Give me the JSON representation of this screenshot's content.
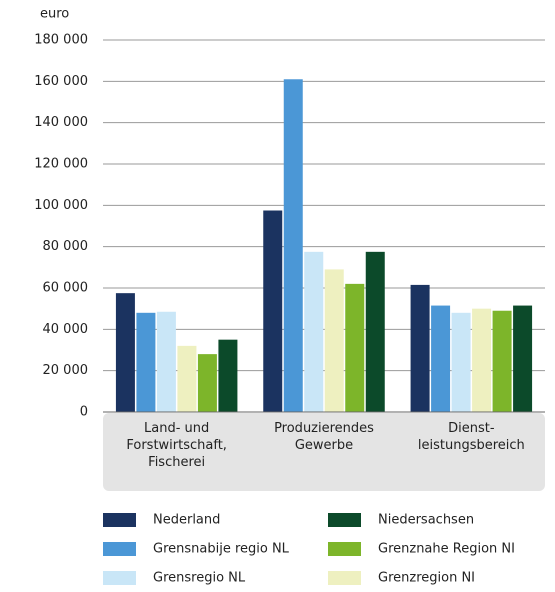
{
  "chart_data": {
    "type": "bar",
    "y_unit_label": "euro",
    "categories": [
      "Land- und\nForstwirtschaft,\nFischerei",
      "Produzierendes\nGewerbe",
      "Dienst-\nleistungsbereich"
    ],
    "series": [
      {
        "name": "Nederland",
        "color": "#1b3360",
        "values": [
          57500,
          97500,
          61500
        ]
      },
      {
        "name": "Grensnabije regio NL",
        "color": "#4b97d6",
        "values": [
          48000,
          161000,
          51500
        ]
      },
      {
        "name": "Grensregio NL",
        "color": "#c9e6f7",
        "values": [
          48500,
          77500,
          48000
        ]
      },
      {
        "name": "Grenzregion NI",
        "color": "#eef0c0",
        "values": [
          32000,
          69000,
          50000
        ]
      },
      {
        "name": "Grenznahe Region NI",
        "color": "#7db52a",
        "values": [
          28000,
          62000,
          49000
        ]
      },
      {
        "name": "Niedersachsen",
        "color": "#0c4a2a",
        "values": [
          35000,
          77500,
          51500
        ]
      }
    ],
    "ylim": [
      0,
      180000
    ],
    "yticks": [
      0,
      {
        "value": 20000,
        "label": "20 000"
      },
      {
        "value": 40000,
        "label": "40 000"
      },
      {
        "value": 60000,
        "label": "60 000"
      },
      {
        "value": 80000,
        "label": "80 000"
      },
      {
        "value": 100000,
        "label": "100 000"
      },
      {
        "value": 120000,
        "label": "120 000"
      },
      {
        "value": 140000,
        "label": "140 000"
      },
      {
        "value": 160000,
        "label": "160 000"
      },
      {
        "value": 180000,
        "label": "180 000"
      }
    ],
    "grid": true,
    "legend_order": [
      0,
      5,
      1,
      4,
      2,
      3
    ]
  }
}
